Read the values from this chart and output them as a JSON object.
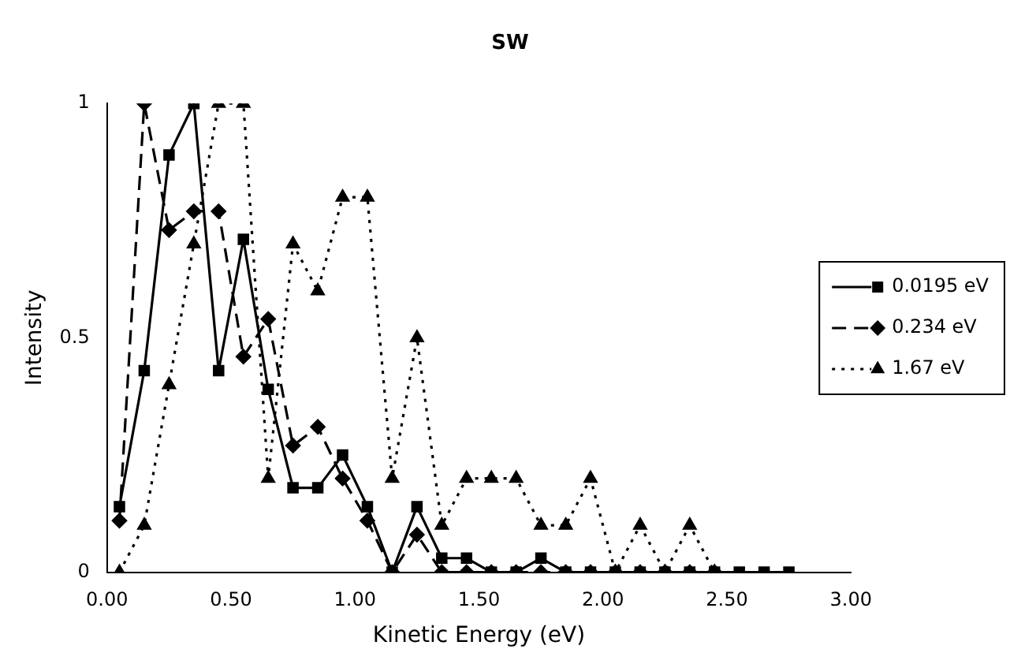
{
  "chart_data": {
    "type": "line",
    "title": "SW",
    "xlabel": "Kinetic Energy (eV)",
    "ylabel": "Intensity",
    "x": [
      0.05,
      0.15,
      0.25,
      0.35,
      0.45,
      0.55,
      0.65,
      0.75,
      0.85,
      0.95,
      1.05,
      1.15,
      1.25,
      1.35,
      1.45,
      1.55,
      1.65,
      1.75,
      1.85,
      1.95,
      2.05,
      2.15,
      2.25,
      2.35,
      2.45,
      2.55,
      2.65,
      2.75
    ],
    "series": [
      {
        "name": "0.0195 eV",
        "color": "#000000",
        "marker": "square",
        "line_style": "solid",
        "values": [
          0.14,
          0.43,
          0.89,
          1,
          0.43,
          0.71,
          0.39,
          0.18,
          0.18,
          0.25,
          0.14,
          0,
          0.14,
          0.03,
          0.03,
          0,
          0,
          0.03,
          0,
          0,
          0,
          0,
          0,
          0,
          0,
          0,
          0,
          0
        ]
      },
      {
        "name": "0.234 eV",
        "color": "#000000",
        "marker": "diamond",
        "line_style": "dashed",
        "values": [
          0.11,
          1,
          0.73,
          0.77,
          0.77,
          0.46,
          0.54,
          0.27,
          0.31,
          0.2,
          0.11,
          0,
          0.08,
          0,
          0,
          0,
          0,
          0,
          0,
          0,
          0,
          0,
          0,
          0,
          0,
          null,
          null,
          null
        ]
      },
      {
        "name": "1.67 eV",
        "color": "#000000",
        "marker": "triangle",
        "line_style": "dotted",
        "values": [
          0,
          0.1,
          0.4,
          0.7,
          1,
          1,
          0.2,
          0.7,
          0.6,
          0.8,
          0.8,
          0.2,
          0.5,
          0.1,
          0.2,
          0.2,
          0.2,
          0.1,
          0.1,
          0.2,
          0,
          0.1,
          0,
          0.1,
          0,
          null,
          null,
          null
        ]
      }
    ],
    "xlim": [
      0,
      3
    ],
    "xticks": [
      {
        "value": 0,
        "label": "0.00"
      },
      {
        "value": 0.5,
        "label": "0.50"
      },
      {
        "value": 1,
        "label": "1.00"
      },
      {
        "value": 1.5,
        "label": "1.50"
      },
      {
        "value": 2,
        "label": "2.00"
      },
      {
        "value": 2.5,
        "label": "2.50"
      },
      {
        "value": 3,
        "label": "3.00"
      }
    ],
    "ylim": [
      0,
      1
    ],
    "yticks": [
      0,
      {
        "value": 0.5,
        "label": "0.5"
      },
      1
    ],
    "grid": false,
    "legend": "right"
  }
}
